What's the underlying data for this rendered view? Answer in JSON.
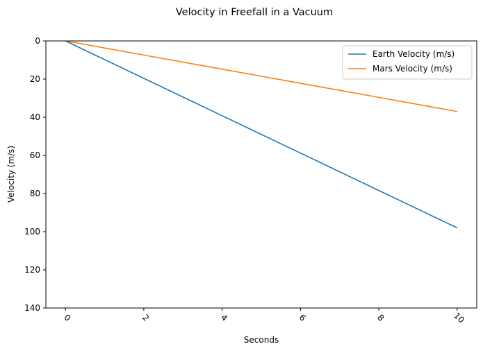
{
  "chart_data": {
    "type": "line",
    "title": "Velocity in Freefall in a Vacuum",
    "xlabel": "Seconds",
    "ylabel": "Velocity (m/s)",
    "x": [
      0,
      1,
      2,
      3,
      4,
      5,
      6,
      7,
      8,
      9,
      10
    ],
    "series": [
      {
        "name": "Earth Velocity (m/s)",
        "color": "#1f77b4",
        "values": [
          0,
          9.8,
          19.6,
          29.4,
          39.2,
          49.0,
          58.8,
          68.6,
          78.4,
          88.2,
          98.0
        ]
      },
      {
        "name": "Mars Velocity (m/s)",
        "color": "#ff7f0e",
        "values": [
          0,
          3.7,
          7.4,
          11.1,
          14.8,
          18.5,
          22.2,
          25.9,
          29.6,
          33.3,
          37.0
        ]
      }
    ],
    "xlim": [
      -0.5,
      10.5
    ],
    "ylim": [
      0,
      140
    ],
    "y_inverted": true,
    "xticks": [
      0,
      2,
      4,
      6,
      8,
      10
    ],
    "yticks": [
      0,
      20,
      40,
      60,
      80,
      100,
      120,
      140
    ],
    "xtick_rotation": 45,
    "grid": false,
    "legend_position": "top-right"
  }
}
